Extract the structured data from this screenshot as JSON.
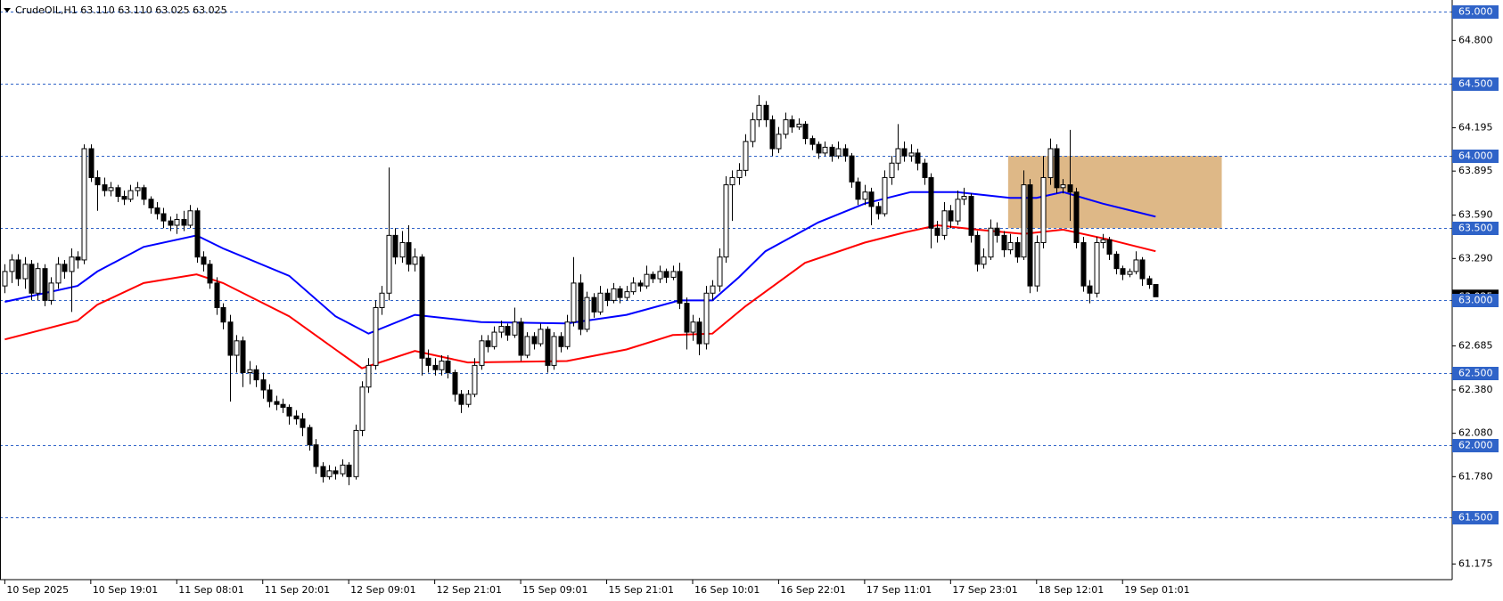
{
  "chart_data": {
    "type": "candlestick",
    "title": "CrudeOIL,H1  63.110 63.110 63.025 63.025",
    "ylim": [
      61.07,
      65.066
    ],
    "yticks": [
      {
        "value": 64.8,
        "label": "64.800"
      },
      {
        "value": 64.195,
        "label": "64.195"
      },
      {
        "value": 63.895,
        "label": "63.895"
      },
      {
        "value": 63.59,
        "label": "63.590"
      },
      {
        "value": 63.29,
        "label": "63.290"
      },
      {
        "value": 62.685,
        "label": "62.685"
      },
      {
        "value": 62.38,
        "label": "62.380"
      },
      {
        "value": 62.08,
        "label": "62.080"
      },
      {
        "value": 61.78,
        "label": "61.780"
      },
      {
        "value": 61.175,
        "label": "61.175"
      }
    ],
    "levels": [
      {
        "value": 65,
        "label": "65.000"
      },
      {
        "value": 64.5,
        "label": "64.500"
      },
      {
        "value": 64,
        "label": "64.000"
      },
      {
        "value": 63.5,
        "label": "63.500"
      },
      {
        "value": 63,
        "label": "63.000"
      },
      {
        "value": 62.5,
        "label": "62.500"
      },
      {
        "value": 62,
        "label": "62.000"
      },
      {
        "value": 61.5,
        "label": "61.500"
      }
    ],
    "level_color": "#2f63c8",
    "last_price": {
      "value": 63.025,
      "label": "63.025"
    },
    "up_color": "#ffffff",
    "down_color": "#000000",
    "categories": [
      "10 Sep 2025",
      null,
      null,
      null,
      null,
      null,
      null,
      null,
      null,
      null,
      null,
      null,
      null,
      "10 Sep 19:01",
      null,
      null,
      null,
      null,
      null,
      null,
      null,
      null,
      null,
      null,
      null,
      null,
      "11 Sep 08:01",
      null,
      null,
      null,
      null,
      null,
      null,
      null,
      null,
      null,
      null,
      null,
      null,
      "11 Sep 20:01",
      null,
      null,
      null,
      null,
      null,
      null,
      null,
      null,
      null,
      null,
      null,
      null,
      "12 Sep 09:01",
      null,
      null,
      null,
      null,
      null,
      null,
      null,
      null,
      null,
      null,
      null,
      null,
      "12 Sep 21:01",
      null,
      null,
      null,
      null,
      null,
      null,
      null,
      null,
      null,
      null,
      null,
      null,
      "15 Sep 09:01",
      null,
      null,
      null,
      null,
      null,
      null,
      null,
      null,
      null,
      null,
      null,
      null,
      "15 Sep 21:01",
      null,
      null,
      null,
      null,
      null,
      null,
      null,
      null,
      null,
      null,
      null,
      null,
      "16 Sep 10:01",
      null,
      null,
      null,
      null,
      null,
      null,
      null,
      null,
      null,
      null,
      null,
      null,
      "16 Sep 22:01",
      null,
      null,
      null,
      null,
      null,
      null,
      null,
      null,
      null,
      null,
      null,
      null,
      "17 Sep 11:01",
      null,
      null,
      null,
      null,
      null,
      null,
      null,
      null,
      null,
      null,
      null,
      null,
      "17 Sep 23:01",
      null,
      null,
      null,
      null,
      null,
      null,
      null,
      null,
      null,
      null,
      null,
      null,
      "18 Sep 12:01",
      null,
      null,
      null,
      null,
      null,
      null,
      null,
      null,
      null,
      null,
      null,
      null,
      "19 Sep 01:01",
      null,
      null,
      null,
      null,
      null
    ],
    "ohlc": [
      [
        63.1,
        63.25,
        63.05,
        63.2
      ],
      [
        63.2,
        63.32,
        63.12,
        63.28
      ],
      [
        63.28,
        63.32,
        63.1,
        63.15
      ],
      [
        63.15,
        63.3,
        63.08,
        63.25
      ],
      [
        63.25,
        63.28,
        63.0,
        63.05
      ],
      [
        63.05,
        63.26,
        63.0,
        63.22
      ],
      [
        63.22,
        63.25,
        62.96,
        63.0
      ],
      [
        63.0,
        63.16,
        62.97,
        63.12
      ],
      [
        63.12,
        63.3,
        63.08,
        63.25
      ],
      [
        63.25,
        63.28,
        63.15,
        63.2
      ],
      [
        63.2,
        63.36,
        62.92,
        63.3
      ],
      [
        63.3,
        63.34,
        63.22,
        63.28
      ],
      [
        63.28,
        64.08,
        63.25,
        64.05
      ],
      [
        64.05,
        64.08,
        63.82,
        63.85
      ],
      [
        63.85,
        63.9,
        63.62,
        63.8
      ],
      [
        63.8,
        63.85,
        63.72,
        63.76
      ],
      [
        63.76,
        63.82,
        63.72,
        63.78
      ],
      [
        63.78,
        63.8,
        63.68,
        63.72
      ],
      [
        63.72,
        63.76,
        63.66,
        63.7
      ],
      [
        63.7,
        63.8,
        63.68,
        63.76
      ],
      [
        63.76,
        63.82,
        63.72,
        63.78
      ],
      [
        63.78,
        63.8,
        63.66,
        63.7
      ],
      [
        63.7,
        63.72,
        63.6,
        63.64
      ],
      [
        63.64,
        63.68,
        63.56,
        63.6
      ],
      [
        63.6,
        63.64,
        63.5,
        63.55
      ],
      [
        63.55,
        63.58,
        63.48,
        63.52
      ],
      [
        63.52,
        63.6,
        63.46,
        63.56
      ],
      [
        63.56,
        63.62,
        63.48,
        63.52
      ],
      [
        63.52,
        63.66,
        63.5,
        63.62
      ],
      [
        63.62,
        63.64,
        63.26,
        63.3
      ],
      [
        63.3,
        63.34,
        63.2,
        63.25
      ],
      [
        63.25,
        63.28,
        63.08,
        63.12
      ],
      [
        63.12,
        63.16,
        62.9,
        62.95
      ],
      [
        62.95,
        62.98,
        62.8,
        62.85
      ],
      [
        62.85,
        62.9,
        62.3,
        62.62
      ],
      [
        62.62,
        62.76,
        62.5,
        62.72
      ],
      [
        62.72,
        62.75,
        62.4,
        62.5
      ],
      [
        62.5,
        62.58,
        62.42,
        62.52
      ],
      [
        62.52,
        62.55,
        62.4,
        62.45
      ],
      [
        62.45,
        62.5,
        62.32,
        62.38
      ],
      [
        62.38,
        62.42,
        62.26,
        62.3
      ],
      [
        62.3,
        62.34,
        62.24,
        62.28
      ],
      [
        62.28,
        62.32,
        62.22,
        62.26
      ],
      [
        62.26,
        62.28,
        62.14,
        62.2
      ],
      [
        62.2,
        62.24,
        62.14,
        62.18
      ],
      [
        62.18,
        62.22,
        62.06,
        62.12
      ],
      [
        62.12,
        62.14,
        61.96,
        62.0
      ],
      [
        62.0,
        62.04,
        61.8,
        61.85
      ],
      [
        61.85,
        61.88,
        61.74,
        61.78
      ],
      [
        61.78,
        61.86,
        61.76,
        61.82
      ],
      [
        61.82,
        61.85,
        61.76,
        61.8
      ],
      [
        61.8,
        61.9,
        61.78,
        61.86
      ],
      [
        61.86,
        61.88,
        61.72,
        61.78
      ],
      [
        61.78,
        62.14,
        61.76,
        62.1
      ],
      [
        62.1,
        62.44,
        62.06,
        62.4
      ],
      [
        62.4,
        62.6,
        62.36,
        62.55
      ],
      [
        62.55,
        63.0,
        62.52,
        62.95
      ],
      [
        62.95,
        63.1,
        62.9,
        63.05
      ],
      [
        63.05,
        63.92,
        63.0,
        63.45
      ],
      [
        63.45,
        63.5,
        63.25,
        63.3
      ],
      [
        63.3,
        63.48,
        63.26,
        63.4
      ],
      [
        63.4,
        63.52,
        63.2,
        63.25
      ],
      [
        63.25,
        63.36,
        63.2,
        63.3
      ],
      [
        63.3,
        63.32,
        62.48,
        62.6
      ],
      [
        62.6,
        62.66,
        62.5,
        62.55
      ],
      [
        62.55,
        62.6,
        62.48,
        62.52
      ],
      [
        62.52,
        62.62,
        62.48,
        62.58
      ],
      [
        62.58,
        62.62,
        62.46,
        62.5
      ],
      [
        62.5,
        62.52,
        62.3,
        62.35
      ],
      [
        62.35,
        62.38,
        62.22,
        62.28
      ],
      [
        62.28,
        62.38,
        62.26,
        62.35
      ],
      [
        62.35,
        62.6,
        62.33,
        62.55
      ],
      [
        62.55,
        62.76,
        62.52,
        62.72
      ],
      [
        62.72,
        62.76,
        62.64,
        62.68
      ],
      [
        62.68,
        62.82,
        62.66,
        62.78
      ],
      [
        62.78,
        62.86,
        62.74,
        62.82
      ],
      [
        62.82,
        62.84,
        62.72,
        62.76
      ],
      [
        62.76,
        62.95,
        62.74,
        62.85
      ],
      [
        62.85,
        62.88,
        62.58,
        62.62
      ],
      [
        62.62,
        62.78,
        62.6,
        62.75
      ],
      [
        62.75,
        62.78,
        62.66,
        62.7
      ],
      [
        62.7,
        62.84,
        62.68,
        62.8
      ],
      [
        62.8,
        62.82,
        62.5,
        62.55
      ],
      [
        62.55,
        62.78,
        62.52,
        62.75
      ],
      [
        62.75,
        62.78,
        62.64,
        62.68
      ],
      [
        62.68,
        62.9,
        62.66,
        62.85
      ],
      [
        62.85,
        63.3,
        62.82,
        63.12
      ],
      [
        63.12,
        63.18,
        62.76,
        62.8
      ],
      [
        62.8,
        63.06,
        62.78,
        63.02
      ],
      [
        63.02,
        63.05,
        62.88,
        62.92
      ],
      [
        62.92,
        63.1,
        62.9,
        63.05
      ],
      [
        63.05,
        63.08,
        62.96,
        63.0
      ],
      [
        63.0,
        63.12,
        62.98,
        63.08
      ],
      [
        63.08,
        63.1,
        62.98,
        63.02
      ],
      [
        63.02,
        63.1,
        63.0,
        63.06
      ],
      [
        63.06,
        63.16,
        63.04,
        63.12
      ],
      [
        63.12,
        63.14,
        63.06,
        63.1
      ],
      [
        63.1,
        63.24,
        63.08,
        63.18
      ],
      [
        63.18,
        63.2,
        63.12,
        63.15
      ],
      [
        63.15,
        63.24,
        63.12,
        63.2
      ],
      [
        63.2,
        63.22,
        63.12,
        63.16
      ],
      [
        63.16,
        63.24,
        63.14,
        63.2
      ],
      [
        63.2,
        63.26,
        62.94,
        62.98
      ],
      [
        62.98,
        63.02,
        62.66,
        62.78
      ],
      [
        62.78,
        62.9,
        62.72,
        62.85
      ],
      [
        62.85,
        62.88,
        62.62,
        62.7
      ],
      [
        62.7,
        63.1,
        62.66,
        63.05
      ],
      [
        63.05,
        63.14,
        63.0,
        63.1
      ],
      [
        63.1,
        63.36,
        63.06,
        63.3
      ],
      [
        63.3,
        63.86,
        63.26,
        63.8
      ],
      [
        63.8,
        63.9,
        63.55,
        63.85
      ],
      [
        63.85,
        63.95,
        63.8,
        63.9
      ],
      [
        63.9,
        64.15,
        63.86,
        64.1
      ],
      [
        64.1,
        64.3,
        64.06,
        64.25
      ],
      [
        64.25,
        64.42,
        64.2,
        64.35
      ],
      [
        64.35,
        64.38,
        64.2,
        64.25
      ],
      [
        64.25,
        64.28,
        64.0,
        64.05
      ],
      [
        64.05,
        64.2,
        64.02,
        64.15
      ],
      [
        64.15,
        64.3,
        64.12,
        64.25
      ],
      [
        64.25,
        64.28,
        64.16,
        64.2
      ],
      [
        64.2,
        64.26,
        64.18,
        64.22
      ],
      [
        64.22,
        64.24,
        64.08,
        64.12
      ],
      [
        64.12,
        64.14,
        64.04,
        64.08
      ],
      [
        64.08,
        64.1,
        63.98,
        64.02
      ],
      [
        64.02,
        64.1,
        64.0,
        64.06
      ],
      [
        64.06,
        64.08,
        63.96,
        64.0
      ],
      [
        64.0,
        64.1,
        63.98,
        64.05
      ],
      [
        64.05,
        64.08,
        63.96,
        64.0
      ],
      [
        64.0,
        64.02,
        63.78,
        63.82
      ],
      [
        63.82,
        63.85,
        63.66,
        63.7
      ],
      [
        63.7,
        63.8,
        63.66,
        63.75
      ],
      [
        63.75,
        63.78,
        63.52,
        63.65
      ],
      [
        63.65,
        63.68,
        63.56,
        63.6
      ],
      [
        63.6,
        63.9,
        63.58,
        63.85
      ],
      [
        63.85,
        64.0,
        63.8,
        63.95
      ],
      [
        63.95,
        64.22,
        63.9,
        64.05
      ],
      [
        64.05,
        64.1,
        63.96,
        64.0
      ],
      [
        64.0,
        64.08,
        63.96,
        64.02
      ],
      [
        64.02,
        64.05,
        63.9,
        63.95
      ],
      [
        63.95,
        63.98,
        63.8,
        63.85
      ],
      [
        63.85,
        63.88,
        63.36,
        63.5
      ],
      [
        63.5,
        63.55,
        63.4,
        63.45
      ],
      [
        63.45,
        63.68,
        63.42,
        63.62
      ],
      [
        63.62,
        63.66,
        63.5,
        63.55
      ],
      [
        63.55,
        63.76,
        63.52,
        63.7
      ],
      [
        63.7,
        63.78,
        63.66,
        63.72
      ],
      [
        63.72,
        63.74,
        63.4,
        63.45
      ],
      [
        63.45,
        63.48,
        63.2,
        63.25
      ],
      [
        63.25,
        63.36,
        63.22,
        63.3
      ],
      [
        63.3,
        63.56,
        63.28,
        63.5
      ],
      [
        63.5,
        63.54,
        63.4,
        63.45
      ],
      [
        63.45,
        63.48,
        63.3,
        63.35
      ],
      [
        63.35,
        63.46,
        63.32,
        63.4
      ],
      [
        63.4,
        63.44,
        63.26,
        63.3
      ],
      [
        63.3,
        63.9,
        63.28,
        63.8
      ],
      [
        63.8,
        63.84,
        63.05,
        63.1
      ],
      [
        63.1,
        63.45,
        63.06,
        63.4
      ],
      [
        63.4,
        64.0,
        63.36,
        63.85
      ],
      [
        63.85,
        64.12,
        63.8,
        64.05
      ],
      [
        64.05,
        64.08,
        63.74,
        63.78
      ],
      [
        63.78,
        63.84,
        63.74,
        63.8
      ],
      [
        63.8,
        64.18,
        63.55,
        63.75
      ],
      [
        63.75,
        63.78,
        63.36,
        63.4
      ],
      [
        63.4,
        63.44,
        63.06,
        63.1
      ],
      [
        63.1,
        63.14,
        62.98,
        63.05
      ],
      [
        63.05,
        63.44,
        63.02,
        63.4
      ],
      [
        63.4,
        63.46,
        63.36,
        63.42
      ],
      [
        63.42,
        63.44,
        63.28,
        63.32
      ],
      [
        63.32,
        63.34,
        63.18,
        63.22
      ],
      [
        63.22,
        63.24,
        63.14,
        63.18
      ],
      [
        63.18,
        63.22,
        63.16,
        63.2
      ],
      [
        63.2,
        63.34,
        63.18,
        63.28
      ],
      [
        63.28,
        63.3,
        63.1,
        63.15
      ],
      [
        63.15,
        63.17,
        63.08,
        63.11
      ],
      [
        63.11,
        63.11,
        63.025,
        63.025
      ]
    ],
    "series": [
      {
        "color": "#0000ff",
        "x": [
          0,
          11,
          14,
          21,
          29,
          33,
          43,
          50,
          55,
          62,
          72,
          85,
          94,
          102,
          107,
          111,
          115,
          123,
          130,
          137,
          144,
          152,
          156,
          160,
          166,
          174
        ],
        "values": [
          62.99,
          63.1,
          63.2,
          63.37,
          63.45,
          63.36,
          63.17,
          62.89,
          62.77,
          62.9,
          62.85,
          62.84,
          62.9,
          63.0,
          63.0,
          63.16,
          63.34,
          63.54,
          63.67,
          63.75,
          63.75,
          63.71,
          63.71,
          63.75,
          63.67,
          63.58
        ]
      },
      {
        "color": "#ff0000",
        "x": [
          0,
          11,
          14,
          21,
          29,
          33,
          43,
          50,
          54,
          62,
          70,
          85,
          94,
          101,
          107,
          112,
          121,
          130,
          136,
          141,
          147,
          154,
          160,
          167,
          174
        ],
        "values": [
          62.73,
          62.86,
          62.97,
          63.12,
          63.18,
          63.12,
          62.89,
          62.66,
          62.53,
          62.65,
          62.57,
          62.58,
          62.66,
          62.76,
          62.77,
          62.96,
          63.26,
          63.4,
          63.47,
          63.52,
          63.49,
          63.46,
          63.49,
          63.42,
          63.34
        ]
      }
    ],
    "zone": {
      "x": [
        151.7,
        184
      ],
      "y": [
        63.5,
        64.0
      ],
      "color": "#deb887"
    }
  }
}
